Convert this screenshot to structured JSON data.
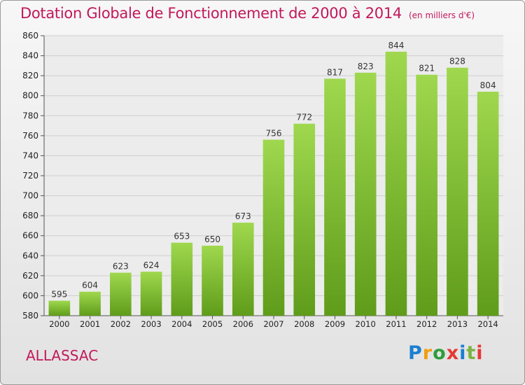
{
  "title": "Dotation Globale de Fonctionnement de 2000 à 2014",
  "unit_note": "(en milliers d'€)",
  "commune": "ALLASSAC",
  "logo": {
    "text": "Proxiti",
    "letters": [
      "P",
      "r",
      "o",
      "x",
      "i",
      "t",
      "i"
    ],
    "colors": [
      "#1a7fd1",
      "#f39c12",
      "#2e9e3a",
      "#e53935",
      "#1a7fd1",
      "#7cb342",
      "#e53935"
    ]
  },
  "colors": {
    "bar_light": "#9fd84e",
    "bar_dark": "#5f9c1a",
    "title": "#c2185b",
    "grid": "#cfcfcf"
  },
  "chart_data": {
    "type": "bar",
    "title": "Dotation Globale de Fonctionnement de 2000 à 2014",
    "subtitle": "(en milliers d'€)",
    "categories": [
      "2000",
      "2001",
      "2002",
      "2003",
      "2004",
      "2005",
      "2006",
      "2007",
      "2008",
      "2009",
      "2010",
      "2011",
      "2012",
      "2013",
      "2014"
    ],
    "values": [
      595,
      604,
      623,
      624,
      653,
      650,
      673,
      756,
      772,
      817,
      823,
      844,
      821,
      828,
      804
    ],
    "ylim": [
      580,
      860
    ],
    "yticks": [
      580,
      600,
      620,
      640,
      660,
      680,
      700,
      720,
      740,
      760,
      780,
      800,
      820,
      840,
      860
    ],
    "xlabel": "",
    "ylabel": "",
    "grid": true,
    "data_labels": true
  }
}
